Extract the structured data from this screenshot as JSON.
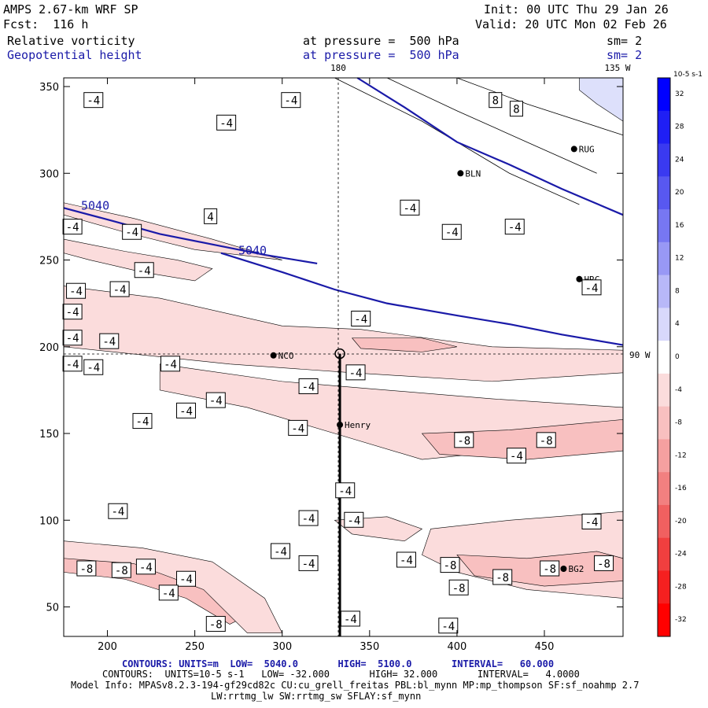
{
  "header": {
    "model": "AMPS 2.67-km WRF SP",
    "forecast": "Fcst:  116 h",
    "init": "Init: 00 UTC Thu 29 Jan 26",
    "valid": "Valid: 20 UTC Mon 02 Feb 26",
    "field1": "Relative vorticity",
    "field2": "Geopotential height",
    "level1": "at pressure =  500 hPa",
    "level2": "at pressure =  500 hPa",
    "sm1": "sm= 2",
    "sm2": "sm= 2"
  },
  "map_labels": {
    "lon_top": "180",
    "lon_top_right": "135 W",
    "lon_right": "90 W"
  },
  "stations": [
    {
      "name": "NCO",
      "x": 295,
      "y": 195
    },
    {
      "name": "Henry",
      "x": 333,
      "y": 155
    },
    {
      "name": "HRC",
      "x": 470,
      "y": 239
    },
    {
      "name": "RUG",
      "x": 467,
      "y": 314
    },
    {
      "name": "BLN",
      "x": 402,
      "y": 300
    },
    {
      "name": "BG2",
      "x": 461,
      "y": 72
    }
  ],
  "chart_data": {
    "type": "contour",
    "xlim": [
      175,
      495
    ],
    "ylim": [
      33,
      355
    ],
    "x_ticks": [
      200,
      250,
      300,
      350,
      400,
      450
    ],
    "y_ticks": [
      50,
      100,
      150,
      200,
      250,
      300,
      350
    ],
    "height_contours": {
      "units": "m",
      "low": 5040.0,
      "high": 5100.0,
      "interval": 60.0,
      "lines": [
        {
          "level": 5040,
          "label": "5040",
          "points": [
            [
              175,
              280
            ],
            [
              205,
              272
            ],
            [
              230,
              265
            ],
            [
              260,
              259
            ],
            [
              290,
              253
            ],
            [
              320,
              248
            ]
          ]
        },
        {
          "level": 5040,
          "label": "5040",
          "points": [
            [
              265,
              254
            ],
            [
              300,
              243
            ],
            [
              330,
              233
            ],
            [
              360,
              225
            ],
            [
              400,
              218
            ],
            [
              430,
              213
            ],
            [
              460,
              207
            ],
            [
              495,
              201
            ]
          ]
        },
        {
          "level": 5100,
          "label": "",
          "points": [
            [
              343,
              355
            ],
            [
              370,
              338
            ],
            [
              400,
              318
            ],
            [
              430,
              305
            ],
            [
              460,
              291
            ],
            [
              495,
              276
            ]
          ]
        }
      ]
    },
    "vorticity_contours": {
      "units": "10^-5 s^-1",
      "low": -32.0,
      "high": 32.0,
      "interval": 4.0
    },
    "contour_labels": [
      {
        "text": "-4",
        "x": 192,
        "y": 342
      },
      {
        "text": "-4",
        "x": 305,
        "y": 342
      },
      {
        "text": "-4",
        "x": 268,
        "y": 329
      },
      {
        "text": "8",
        "x": 422,
        "y": 342
      },
      {
        "text": "8",
        "x": 434,
        "y": 337
      },
      {
        "text": "-4",
        "x": 477,
        "y": 234
      },
      {
        "text": "4",
        "x": 259,
        "y": 275
      },
      {
        "text": "-4",
        "x": 180,
        "y": 269
      },
      {
        "text": "-4",
        "x": 182,
        "y": 232
      },
      {
        "text": "-4",
        "x": 207,
        "y": 233
      },
      {
        "text": "-4",
        "x": 214,
        "y": 266
      },
      {
        "text": "-4",
        "x": 221,
        "y": 244
      },
      {
        "text": "-4",
        "x": 180,
        "y": 220
      },
      {
        "text": "-4",
        "x": 180,
        "y": 205
      },
      {
        "text": "-4",
        "x": 201,
        "y": 203
      },
      {
        "text": "-4",
        "x": 180,
        "y": 190
      },
      {
        "text": "-4",
        "x": 192,
        "y": 188
      },
      {
        "text": "-4",
        "x": 236,
        "y": 190
      },
      {
        "text": "-4",
        "x": 262,
        "y": 169
      },
      {
        "text": "-4",
        "x": 245,
        "y": 163
      },
      {
        "text": "-4",
        "x": 220,
        "y": 157
      },
      {
        "text": "-4",
        "x": 345,
        "y": 216
      },
      {
        "text": "-4",
        "x": 342,
        "y": 185
      },
      {
        "text": "-4",
        "x": 315,
        "y": 177
      },
      {
        "text": "-4",
        "x": 309,
        "y": 153
      },
      {
        "text": "-4",
        "x": 373,
        "y": 280
      },
      {
        "text": "-4",
        "x": 397,
        "y": 266
      },
      {
        "text": "-4",
        "x": 433,
        "y": 269
      },
      {
        "text": "-8",
        "x": 404,
        "y": 146
      },
      {
        "text": "-8",
        "x": 451,
        "y": 146
      },
      {
        "text": "-4",
        "x": 434,
        "y": 137
      },
      {
        "text": "-4",
        "x": 336,
        "y": 117
      },
      {
        "text": "-4",
        "x": 206,
        "y": 105
      },
      {
        "text": "-4",
        "x": 315,
        "y": 101
      },
      {
        "text": "-4",
        "x": 341,
        "y": 100
      },
      {
        "text": "-4",
        "x": 299,
        "y": 82
      },
      {
        "text": "-4",
        "x": 315,
        "y": 75
      },
      {
        "text": "-4",
        "x": 371,
        "y": 77
      },
      {
        "text": "-8",
        "x": 396,
        "y": 74
      },
      {
        "text": "-8",
        "x": 401,
        "y": 61
      },
      {
        "text": "-8",
        "x": 426,
        "y": 67
      },
      {
        "text": "-8",
        "x": 453,
        "y": 72
      },
      {
        "text": "-4",
        "x": 477,
        "y": 99
      },
      {
        "text": "-8",
        "x": 484,
        "y": 75
      },
      {
        "text": "-8",
        "x": 188,
        "y": 72
      },
      {
        "text": "-8",
        "x": 208,
        "y": 71
      },
      {
        "text": "-4",
        "x": 222,
        "y": 73
      },
      {
        "text": "-4",
        "x": 245,
        "y": 66
      },
      {
        "text": "-4",
        "x": 235,
        "y": 58
      },
      {
        "text": "-8",
        "x": 262,
        "y": 40
      },
      {
        "text": "-4",
        "x": 339,
        "y": 43
      },
      {
        "text": "-4",
        "x": 395,
        "y": 39
      }
    ],
    "colorbar": {
      "units": "10-5 s-1",
      "ticks": [
        32,
        28,
        24,
        20,
        16,
        12,
        8,
        4,
        0,
        -4,
        -8,
        -12,
        -16,
        -20,
        -24,
        -28,
        -32
      ],
      "colors": [
        "#0000ff",
        "#1f1ff5",
        "#3a3af0",
        "#5858f0",
        "#7777f2",
        "#9898f5",
        "#b8b8f8",
        "#d8d8fb",
        "#ffffff",
        "#fbdcdc",
        "#f8c0c0",
        "#f5a0a0",
        "#f28080",
        "#f06060",
        "#f03f3f",
        "#f52020",
        "#ff0000"
      ]
    }
  },
  "footer": {
    "line1_a": "CONTOURS: UNITS=m  LOW=  5040.0       HIGH=  5100.0       INTERVAL=   60.000",
    "line2_a": "CONTOURS:  UNITS=10-5 s-1   LOW= -32.000       HIGH= 32.000       INTERVAL=   4.0000",
    "line3": "Model Info: MPASv8.2.3-194-gf29cd82c CU:cu_grell_freitas PBL:bl_mynn MP:mp_thompson SF:sf_noahmp 2.7",
    "line4": "LW:rrtmg_lw SW:rrtmg_sw SFLAY:sf_mynn"
  }
}
